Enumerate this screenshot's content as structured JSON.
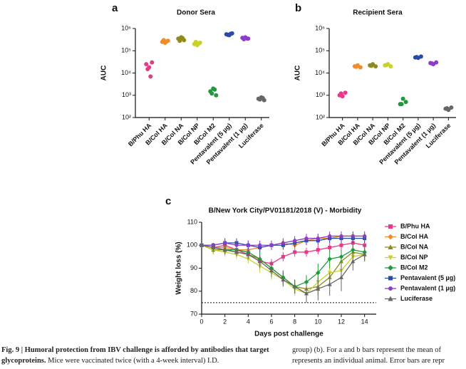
{
  "panels": [
    "a",
    "b",
    "c"
  ],
  "chart_data": [
    {
      "type": "strip",
      "title": "Donor Sera",
      "y_label": "AUC",
      "log_scale": true,
      "categories": [
        "B/Phu HA",
        "B/Col HA",
        "B/Col NA",
        "B/Col NP",
        "B/Col M2",
        "Pentavalent (5 µg)",
        "Pentavalent (1 µg)",
        "Luciferase"
      ],
      "colors": [
        "#e8388a",
        "#f28c28",
        "#8c8c1e",
        "#c8d22a",
        "#1e9a3c",
        "#2a4aa8",
        "#8c3cc8",
        "#666666"
      ],
      "values": [
        [
          25000,
          30000,
          18000,
          15000,
          7000
        ],
        [
          250000,
          280000,
          230000,
          300000,
          260000
        ],
        [
          350000,
          300000,
          400000,
          280000,
          370000
        ],
        [
          200000,
          230000,
          180000,
          250000,
          210000
        ],
        [
          1500,
          1000,
          2000,
          1200,
          1800
        ],
        [
          550000,
          600000,
          500000,
          520000,
          580000
        ],
        [
          380000,
          350000,
          400000,
          330000,
          360000
        ],
        [
          700,
          600,
          800,
          650,
          750
        ]
      ],
      "ylim": [
        100,
        1000000
      ],
      "yticks": [
        {
          "value": 100,
          "label": "10²"
        },
        {
          "value": 1000,
          "label": "10³"
        },
        {
          "value": 10000,
          "label": "10⁴"
        },
        {
          "value": 100000,
          "label": "10⁵"
        },
        {
          "value": 1000000,
          "label": "10⁶"
        }
      ]
    },
    {
      "type": "strip",
      "title": "Recipient Sera",
      "y_label": "AUC",
      "log_scale": true,
      "categories": [
        "B/Phu HA",
        "B/Col HA",
        "B/Col NA",
        "B/Col NP",
        "B/Col M2",
        "Pentavalent (5 µg)",
        "Pentavalent (1 µg)",
        "Luciferase"
      ],
      "colors": [
        "#e8388a",
        "#f28c28",
        "#8c8c1e",
        "#c8d22a",
        "#1e9a3c",
        "#2a4aa8",
        "#8c3cc8",
        "#666666"
      ],
      "values": [
        [
          1000,
          1300,
          900,
          1200
        ],
        [
          20000,
          18000,
          22000,
          19000
        ],
        [
          22000,
          20000,
          25000,
          21000
        ],
        [
          22000,
          20000,
          25000,
          23000
        ],
        [
          400,
          500,
          700,
          400
        ],
        [
          50000,
          55000,
          48000,
          52000
        ],
        [
          28000,
          30000,
          25000,
          27000
        ],
        [
          250,
          280,
          220,
          260
        ]
      ],
      "ylim": [
        100,
        1000000
      ],
      "yticks": [
        {
          "value": 100,
          "label": "10²"
        },
        {
          "value": 1000,
          "label": "10³"
        },
        {
          "value": 10000,
          "label": "10⁴"
        },
        {
          "value": 100000,
          "label": "10⁵"
        },
        {
          "value": 1000000,
          "label": "10⁶"
        }
      ]
    },
    {
      "type": "line",
      "title": "B/New York City/PV01181/2018 (V) - Morbidity",
      "x_label": "Days post challenge",
      "y_label": "Weight loss (%)",
      "x": [
        0,
        1,
        2,
        3,
        4,
        5,
        6,
        7,
        8,
        9,
        10,
        11,
        12,
        13,
        14
      ],
      "xlim": [
        0,
        15
      ],
      "xticks": [
        0,
        2,
        4,
        6,
        8,
        10,
        12,
        14
      ],
      "ylim": [
        70,
        110
      ],
      "yticks": [
        70,
        80,
        90,
        100,
        110
      ],
      "reference_line": 75,
      "series": [
        {
          "name": "B/Phu HA",
          "color": "#e8388a",
          "marker": "square",
          "values": [
            100,
            99,
            100,
            98,
            96,
            93,
            92,
            95,
            97,
            97,
            98,
            99,
            100,
            101,
            100
          ],
          "errors": [
            0,
            1,
            2,
            2,
            2,
            2,
            2,
            2,
            2,
            2,
            2,
            2,
            2,
            2,
            2
          ]
        },
        {
          "name": "B/Col HA",
          "color": "#f28c28",
          "marker": "diamond",
          "values": [
            100,
            99,
            99,
            98,
            98,
            99,
            100,
            101,
            100,
            102,
            103,
            103,
            104,
            104,
            104
          ],
          "errors": [
            0,
            2,
            2,
            2,
            2,
            2,
            2,
            2,
            2,
            2,
            2,
            2,
            2,
            2,
            2
          ]
        },
        {
          "name": "B/Col NA",
          "color": "#8c8c1e",
          "marker": "triangle",
          "values": [
            100,
            98,
            98,
            97,
            96,
            94,
            90,
            86,
            82,
            81,
            82,
            86,
            93,
            97,
            96
          ],
          "errors": [
            0,
            2,
            2,
            2,
            2,
            3,
            3,
            3,
            3,
            3,
            4,
            4,
            4,
            3,
            3
          ]
        },
        {
          "name": "B/Col NP",
          "color": "#c8d22a",
          "marker": "triangle-down",
          "values": [
            100,
            98,
            97,
            96,
            94,
            91,
            88,
            85,
            81,
            79,
            84,
            88,
            89,
            95,
            96
          ],
          "errors": [
            0,
            2,
            2,
            2,
            2,
            3,
            3,
            3,
            3,
            4,
            5,
            6,
            8,
            4,
            3
          ]
        },
        {
          "name": "B/Col M2",
          "color": "#1e9a3c",
          "marker": "diamond",
          "values": [
            100,
            99,
            98,
            98,
            97,
            94,
            90,
            86,
            82,
            84,
            88,
            94,
            95,
            98,
            97
          ],
          "errors": [
            0,
            2,
            2,
            2,
            2,
            3,
            3,
            3,
            3,
            3,
            4,
            4,
            3,
            3,
            3
          ]
        },
        {
          "name": "Pentavalent (5 µg)",
          "color": "#2a4aa8",
          "marker": "square",
          "values": [
            100,
            100,
            101,
            101,
            100,
            99,
            100,
            100,
            101,
            102,
            102,
            103,
            103,
            103,
            103
          ],
          "errors": [
            0,
            1,
            2,
            2,
            2,
            2,
            2,
            2,
            2,
            2,
            2,
            2,
            2,
            2,
            2
          ]
        },
        {
          "name": "Pentavalent (1 µg)",
          "color": "#8c3cc8",
          "marker": "circle",
          "values": [
            100,
            100,
            101,
            100,
            100,
            100,
            100,
            101,
            102,
            103,
            103,
            104,
            104,
            104,
            104
          ],
          "errors": [
            0,
            1,
            2,
            2,
            2,
            2,
            2,
            2,
            2,
            2,
            2,
            2,
            2,
            2,
            2
          ]
        },
        {
          "name": "Luciferase",
          "color": "#666666",
          "marker": "triangle",
          "values": [
            100,
            99,
            98,
            97,
            96,
            93,
            89,
            85,
            82,
            79,
            81,
            83,
            86,
            93,
            96
          ],
          "errors": [
            0,
            2,
            2,
            2,
            2,
            3,
            3,
            3,
            3,
            4,
            5,
            5,
            6,
            4,
            3
          ]
        }
      ]
    }
  ],
  "caption": {
    "label": "Fig. 9 | Humoral protection from IBV challenge is afforded by antibodies that target glycoproteins.",
    "text": "Mice were vaccinated twice (with a 4-week interval) I.D.",
    "right_line_1": "group) (b). For a and b bars represent the mean of",
    "right_line_2": "represents an individual animal. Error bars are repr"
  }
}
